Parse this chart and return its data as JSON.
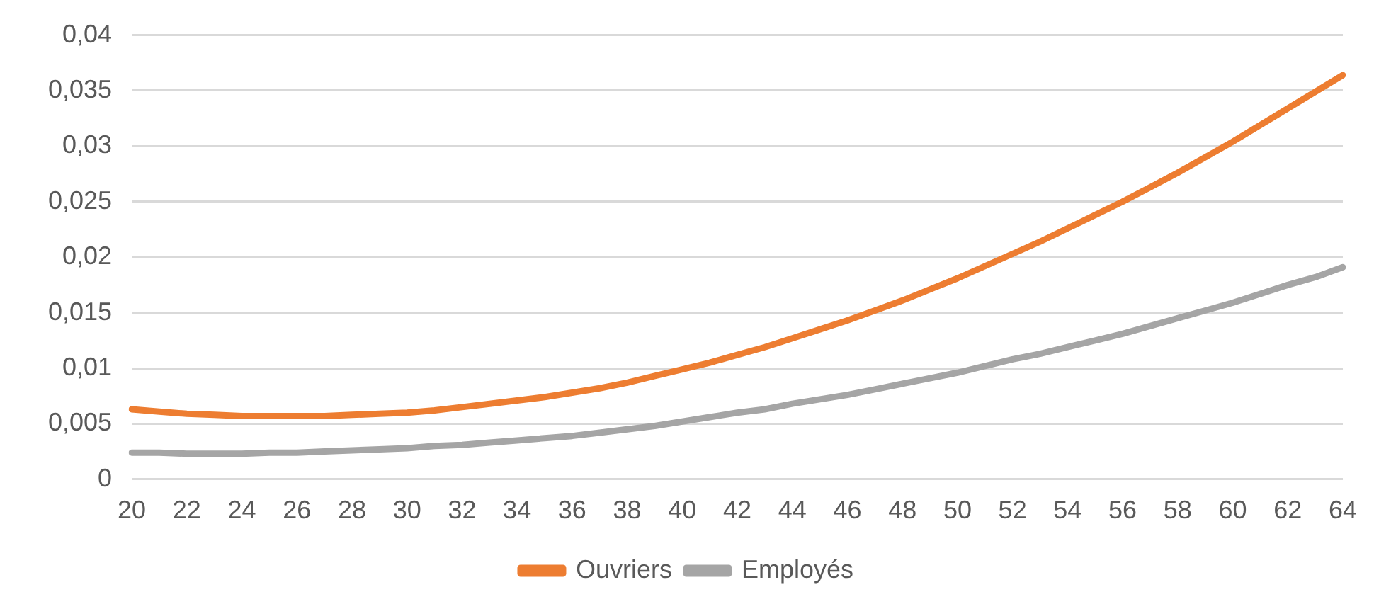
{
  "chart_data": {
    "type": "line",
    "categories": [
      "20",
      null,
      "22",
      null,
      "24",
      null,
      "26",
      null,
      "28",
      null,
      "30",
      null,
      "32",
      null,
      "34",
      null,
      "36",
      null,
      "38",
      null,
      "40",
      null,
      "42",
      null,
      "44",
      null,
      "46",
      null,
      "48",
      null,
      "50",
      null,
      "52",
      null,
      "54",
      null,
      "56",
      null,
      "58",
      null,
      "60",
      null,
      "62",
      null,
      "64"
    ],
    "series": [
      {
        "name": "Ouvriers",
        "color": "#ed7d31",
        "values": [
          0.0063,
          0.0061,
          0.0059,
          0.0058,
          0.0057,
          0.0057,
          0.0057,
          0.0057,
          0.0058,
          0.0059,
          0.006,
          0.0062,
          0.0065,
          0.0068,
          0.0071,
          0.0074,
          0.0078,
          0.0082,
          0.0087,
          0.0093,
          0.0099,
          0.0105,
          0.0112,
          0.0119,
          0.0127,
          0.0135,
          0.0143,
          0.0152,
          0.0161,
          0.0171,
          0.0181,
          0.0192,
          0.0203,
          0.0214,
          0.0226,
          0.0238,
          0.025,
          0.0263,
          0.0276,
          0.029,
          0.0304,
          0.0319,
          0.0334,
          0.0349,
          0.0364
        ]
      },
      {
        "name": "Employés",
        "color": "#a5a5a5",
        "values": [
          0.0024,
          0.0024,
          0.0023,
          0.0023,
          0.0023,
          0.0024,
          0.0024,
          0.0025,
          0.0026,
          0.0027,
          0.0028,
          0.003,
          0.0031,
          0.0033,
          0.0035,
          0.0037,
          0.0039,
          0.0042,
          0.0045,
          0.0048,
          0.0052,
          0.0056,
          0.006,
          0.0063,
          0.0068,
          0.0072,
          0.0076,
          0.0081,
          0.0086,
          0.0091,
          0.0096,
          0.0102,
          0.0108,
          0.0113,
          0.0119,
          0.0125,
          0.0131,
          0.0138,
          0.0145,
          0.0152,
          0.0159,
          0.0167,
          0.0175,
          0.0182,
          0.0191
        ]
      }
    ],
    "ylim": [
      0,
      0.04
    ],
    "yticks": [
      {
        "value": 0,
        "label": "0"
      },
      {
        "value": 0.005,
        "label": "0,005"
      },
      {
        "value": 0.01,
        "label": "0,01"
      },
      {
        "value": 0.015,
        "label": "0,015"
      },
      {
        "value": 0.02,
        "label": "0,02"
      },
      {
        "value": 0.025,
        "label": "0,025"
      },
      {
        "value": 0.03,
        "label": "0,03"
      },
      {
        "value": 0.035,
        "label": "0,035"
      },
      {
        "value": 0.04,
        "label": "0,04"
      }
    ],
    "grid": "y",
    "legend": "bottom",
    "marker": "none",
    "line_style": "solid"
  }
}
